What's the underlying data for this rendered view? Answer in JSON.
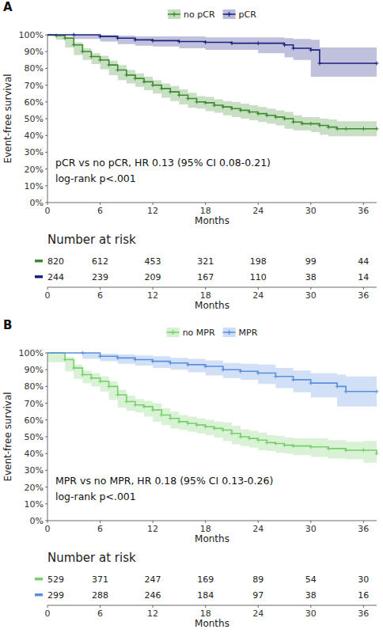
{
  "chart_data": [
    {
      "type": "line",
      "panel": "A",
      "legend": "top",
      "grid": false,
      "marker": "plus",
      "line_style": "step",
      "x_label": "Months",
      "y_label": "Event-free survival",
      "xlim": [
        0,
        37.5
      ],
      "xticks": [
        0,
        6,
        12,
        18,
        24,
        30,
        36
      ],
      "ylim": [
        0,
        100
      ],
      "yticks": [
        {
          "value": 0,
          "label": "0%"
        },
        {
          "value": 10,
          "label": "10%"
        },
        {
          "value": 20,
          "label": "20%"
        },
        {
          "value": 30,
          "label": "30%"
        },
        {
          "value": 40,
          "label": "40%"
        },
        {
          "value": 50,
          "label": "50%"
        },
        {
          "value": 60,
          "label": "60%"
        },
        {
          "value": 70,
          "label": "70%"
        },
        {
          "value": 80,
          "label": "80%"
        },
        {
          "value": 90,
          "label": "90%"
        },
        {
          "value": 100,
          "label": "100%"
        }
      ],
      "annotations": [
        "pCR vs no pCR, HR 0.13 (95% CI 0.08-0.21)",
        "log-rank p<.001"
      ],
      "series": [
        {
          "name": "no pCR",
          "color": "#3b8c2c",
          "x": [
            0,
            1,
            2,
            3,
            4,
            5,
            6,
            7,
            8,
            9,
            10,
            11,
            12,
            13,
            14,
            15,
            16,
            17,
            18,
            19,
            20,
            21,
            22,
            23,
            24,
            25,
            26,
            27,
            28,
            29,
            30,
            31,
            32,
            33,
            34,
            36,
            37.5
          ],
          "values": [
            100,
            99.5,
            98,
            94,
            90,
            87,
            85,
            82,
            79,
            76,
            74,
            72,
            70,
            68,
            66,
            64,
            62,
            60,
            59.5,
            58,
            57,
            56,
            55,
            54,
            53,
            52,
            51,
            50,
            48,
            47,
            47,
            46,
            45,
            44,
            44,
            44,
            44
          ],
          "ci_lower": [
            100,
            99,
            97,
            92.5,
            88,
            85,
            82.5,
            79.5,
            76,
            73,
            71,
            69,
            67,
            65,
            62.5,
            60.5,
            58.5,
            56.5,
            56,
            54.5,
            53.5,
            52,
            51,
            50,
            49,
            48,
            47,
            46,
            44,
            43,
            43,
            42,
            40.5,
            39.5,
            39.5,
            39.5,
            39.5
          ],
          "ci_upper": [
            100,
            100,
            99,
            95.5,
            92,
            89,
            87.5,
            84.5,
            82,
            79,
            77,
            75,
            73,
            71,
            69.5,
            67.5,
            65.5,
            63.5,
            63,
            61.5,
            60.5,
            60,
            59,
            58,
            57,
            56,
            55,
            54,
            52,
            51,
            51,
            50,
            49.5,
            48.5,
            48.5,
            48.5,
            48.5
          ]
        },
        {
          "name": "pCR",
          "color": "#1c2180",
          "x": [
            0,
            3,
            6,
            8,
            10,
            12,
            15,
            18,
            21,
            24,
            27,
            28,
            30,
            31,
            37.5
          ],
          "values": [
            100,
            100,
            99,
            98,
            97,
            96.5,
            96,
            95.5,
            95,
            95,
            94,
            92,
            91,
            83,
            83
          ],
          "ci_lower": [
            100,
            100,
            97.5,
            96,
            94.5,
            93.5,
            93,
            92,
            91,
            91,
            89,
            86.5,
            85,
            75,
            75
          ],
          "ci_upper": [
            100,
            100,
            100,
            99.5,
            99,
            99,
            99,
            98.5,
            98.5,
            98.5,
            98,
            97.5,
            97,
            92.5,
            92.5
          ]
        }
      ],
      "risk_table": {
        "title": "Number at risk",
        "x_label": "Months",
        "times": [
          0,
          6,
          12,
          18,
          24,
          30,
          36
        ],
        "rows": [
          [
            820,
            612,
            453,
            321,
            198,
            99,
            44
          ],
          [
            244,
            239,
            209,
            167,
            110,
            38,
            14
          ]
        ]
      }
    },
    {
      "type": "line",
      "panel": "B",
      "legend": "top",
      "grid": false,
      "marker": "plus",
      "line_style": "step",
      "x_label": "Months",
      "y_label": "Event-free survival",
      "xlim": [
        0,
        37.5
      ],
      "xticks": [
        0,
        6,
        12,
        18,
        24,
        30,
        36
      ],
      "ylim": [
        0,
        100
      ],
      "yticks": [
        {
          "value": 0,
          "label": "0%"
        },
        {
          "value": 10,
          "label": "10%"
        },
        {
          "value": 20,
          "label": "20%"
        },
        {
          "value": 30,
          "label": "30%"
        },
        {
          "value": 40,
          "label": "40%"
        },
        {
          "value": 50,
          "label": "50%"
        },
        {
          "value": 60,
          "label": "60%"
        },
        {
          "value": 70,
          "label": "70%"
        },
        {
          "value": 80,
          "label": "80%"
        },
        {
          "value": 90,
          "label": "90%"
        },
        {
          "value": 100,
          "label": "100%"
        }
      ],
      "annotations": [
        "MPR vs no MPR, HR 0.18 (95% CI 0.13-0.26)",
        "log-rank p<.001"
      ],
      "series": [
        {
          "name": "no MPR",
          "color": "#76d06a",
          "x": [
            0,
            2,
            3,
            4,
            5,
            6,
            7,
            8,
            9,
            10,
            11,
            12,
            13,
            14,
            15,
            16,
            17,
            18,
            19,
            20,
            21,
            22,
            23,
            24,
            25,
            26,
            27,
            28,
            30,
            32,
            34,
            36,
            37.5
          ],
          "values": [
            100,
            96,
            91,
            87,
            85,
            83,
            80,
            75,
            71,
            69,
            68,
            66,
            63,
            61,
            59,
            58,
            57,
            56,
            55,
            54,
            52,
            50,
            49,
            48,
            46.5,
            46,
            45,
            44.5,
            44,
            43,
            42,
            42,
            40
          ],
          "ci_lower": [
            100,
            94.5,
            89,
            84.5,
            82,
            80,
            77,
            72,
            67.5,
            65.5,
            64.5,
            62,
            59,
            57,
            55,
            54,
            53,
            52,
            51,
            49.5,
            47.5,
            45.5,
            44.5,
            43.5,
            42,
            41.5,
            40.5,
            40,
            39,
            38,
            37,
            36.5,
            34.5
          ],
          "ci_upper": [
            100,
            97.5,
            93,
            89.5,
            88,
            86,
            83,
            78,
            74.5,
            72.5,
            71.5,
            70,
            67,
            65,
            63,
            62,
            61,
            60,
            59,
            58.5,
            56.5,
            54.5,
            53.5,
            52.5,
            51,
            50.5,
            49.5,
            49,
            49,
            48,
            47,
            47.5,
            45.5
          ]
        },
        {
          "name": "MPR",
          "color": "#5a8ede",
          "x": [
            0,
            4,
            6,
            8,
            10,
            12,
            14,
            16,
            18,
            20,
            22,
            24,
            26,
            28,
            30,
            33,
            34,
            37.5
          ],
          "values": [
            100,
            100,
            98,
            97,
            96,
            95,
            94,
            93,
            92,
            90,
            89,
            88,
            86,
            84,
            82,
            80,
            77,
            77
          ],
          "ci_lower": [
            100,
            100,
            96.5,
            95,
            93.5,
            92.5,
            91,
            90,
            88.5,
            86.5,
            85,
            84,
            81.5,
            79,
            76.5,
            73.5,
            68,
            68
          ],
          "ci_upper": [
            100,
            100,
            99.5,
            99,
            98.5,
            98,
            97,
            96.5,
            95.5,
            94,
            93.5,
            93,
            91,
            89.5,
            88,
            87,
            86,
            86
          ]
        }
      ],
      "risk_table": {
        "title": "Number at risk",
        "x_label": "Months",
        "times": [
          0,
          6,
          12,
          18,
          24,
          30,
          36
        ],
        "rows": [
          [
            529,
            371,
            247,
            169,
            89,
            54,
            30
          ],
          [
            299,
            288,
            246,
            184,
            97,
            38,
            16
          ]
        ]
      }
    }
  ]
}
